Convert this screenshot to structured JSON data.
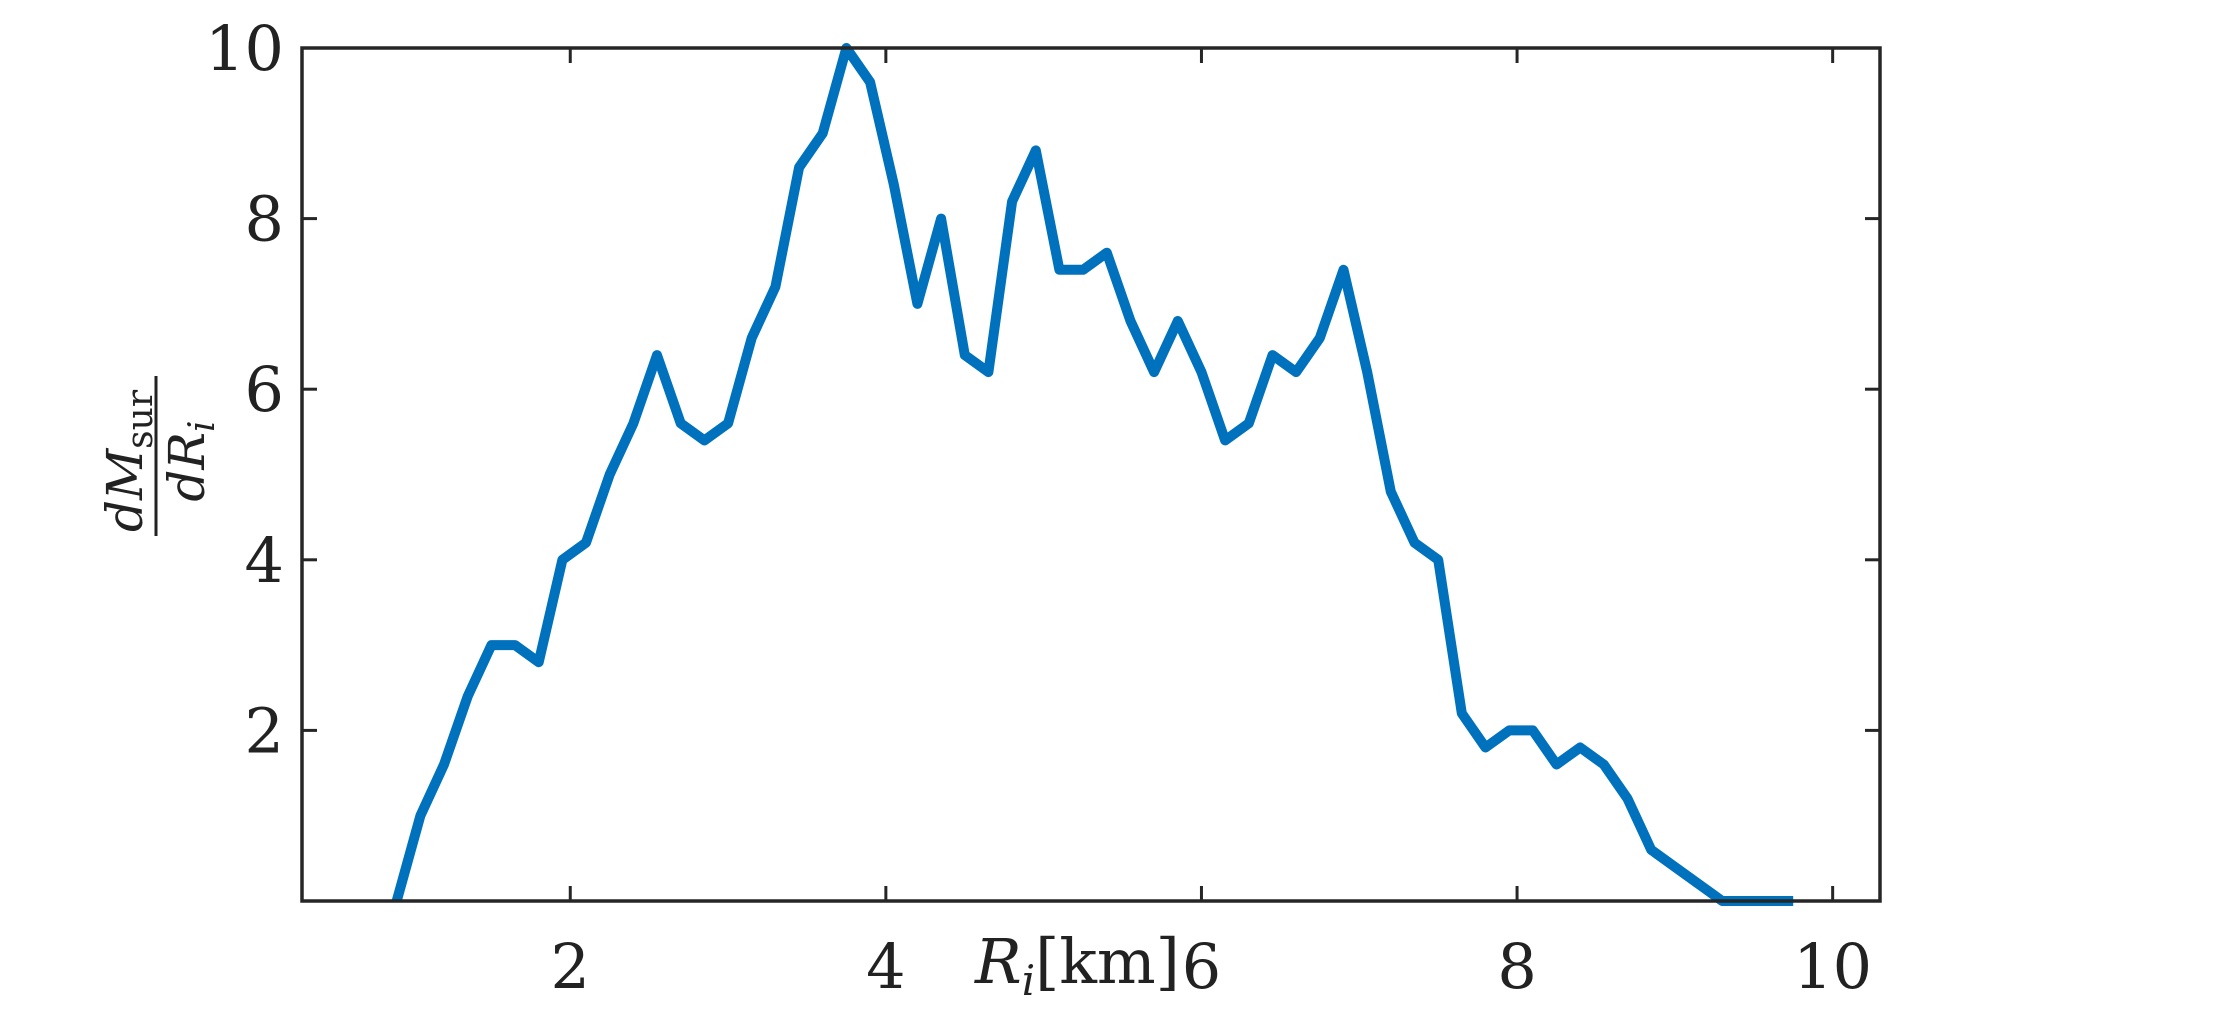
{
  "chart_data": {
    "type": "line",
    "xlabel": "R_i[km]",
    "ylabel": "dM_sur / dR_i",
    "xlim": [
      0.3,
      10.3
    ],
    "ylim": [
      0,
      10
    ],
    "xticks": [
      2,
      4,
      6,
      8,
      10
    ],
    "yticks": [
      2,
      4,
      6,
      8,
      10
    ],
    "grid": false,
    "series": [
      {
        "color": "#0072BD",
        "x": [
          0.9,
          1.05,
          1.2,
          1.35,
          1.5,
          1.65,
          1.8,
          1.95,
          2.1,
          2.25,
          2.4,
          2.55,
          2.7,
          2.85,
          3.0,
          3.15,
          3.3,
          3.45,
          3.6,
          3.75,
          3.9,
          4.05,
          4.2,
          4.35,
          4.5,
          4.65,
          4.8,
          4.95,
          5.1,
          5.25,
          5.4,
          5.55,
          5.7,
          5.85,
          6.0,
          6.15,
          6.3,
          6.45,
          6.6,
          6.75,
          6.9,
          7.05,
          7.2,
          7.35,
          7.5,
          7.65,
          7.8,
          7.95,
          8.1,
          8.25,
          8.4,
          8.55,
          8.7,
          8.85,
          9.0,
          9.15,
          9.3,
          9.45,
          9.6,
          9.75
        ],
        "y": [
          0.0,
          1.0,
          1.6,
          2.4,
          3.0,
          3.0,
          2.8,
          4.0,
          4.2,
          5.0,
          5.6,
          6.4,
          5.6,
          5.4,
          5.6,
          6.6,
          7.2,
          8.6,
          9.0,
          10.0,
          9.6,
          8.4,
          7.0,
          8.0,
          6.4,
          6.2,
          8.2,
          8.8,
          7.4,
          7.4,
          7.6,
          6.8,
          6.2,
          6.8,
          6.2,
          5.4,
          5.6,
          6.4,
          6.2,
          6.6,
          7.4,
          6.2,
          4.8,
          4.2,
          4.0,
          2.2,
          1.8,
          2.0,
          2.0,
          1.6,
          1.8,
          1.6,
          1.2,
          0.6,
          0.4,
          0.2,
          0.0,
          0.0,
          0.0,
          0.0
        ]
      }
    ]
  }
}
